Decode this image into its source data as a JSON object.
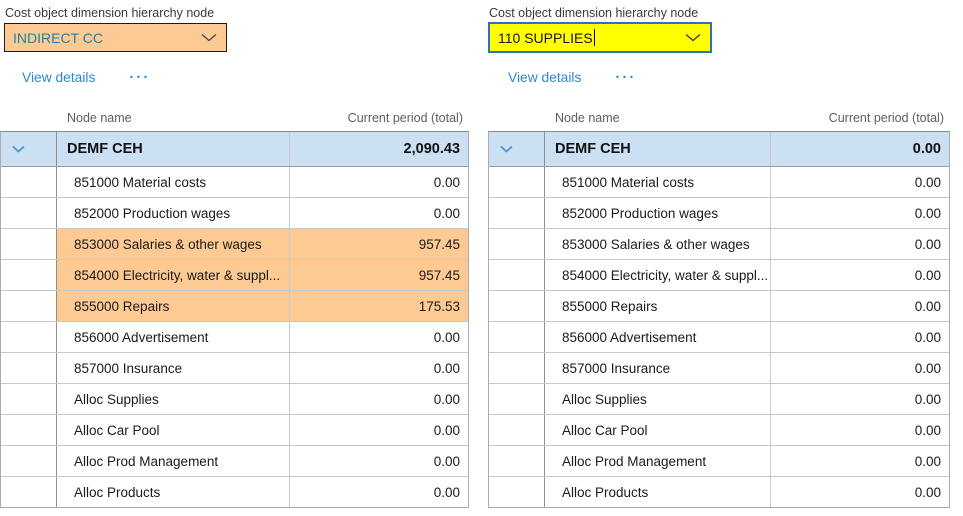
{
  "colors": {
    "highlight_orange": "#FDCA94",
    "edit_yellow": "#FFFF00",
    "selected_row_blue": "#CBE0F3",
    "link_blue": "#2C88D8",
    "combobox_text_teal": "#1E7FA8",
    "focus_border_blue": "#2F6FBF",
    "row_chevron_blue": "#4A90D2"
  },
  "panels": [
    {
      "field_label": "Cost object dimension hierarchy node",
      "combobox_value": "INDIRECT CC",
      "view_details_label": "View details",
      "more_options_glyph": "···",
      "table": {
        "columns": [
          "Node name",
          "Current period (total)"
        ],
        "rows": [
          {
            "name": "DEMF CEH",
            "value": "2,090.43",
            "selected": true
          },
          {
            "name": "851000 Material costs",
            "value": "0.00"
          },
          {
            "name": "852000 Production wages",
            "value": "0.00"
          },
          {
            "name": "853000 Salaries & other wages",
            "value": "957.45",
            "highlighted": true
          },
          {
            "name": "854000 Electricity, water & suppl...",
            "value": "957.45",
            "highlighted": true
          },
          {
            "name": "855000 Repairs",
            "value": "175.53",
            "highlighted": true
          },
          {
            "name": "856000 Advertisement",
            "value": "0.00"
          },
          {
            "name": "857000 Insurance",
            "value": "0.00"
          },
          {
            "name": "Alloc Supplies",
            "value": "0.00"
          },
          {
            "name": "Alloc Car Pool",
            "value": "0.00"
          },
          {
            "name": "Alloc Prod Management",
            "value": "0.00"
          },
          {
            "name": "Alloc Products",
            "value": "0.00"
          }
        ]
      }
    },
    {
      "field_label": "Cost object dimension hierarchy node",
      "combobox_value": "110 SUPPLIES",
      "view_details_label": "View details",
      "more_options_glyph": "···",
      "table": {
        "columns": [
          "Node name",
          "Current period (total)"
        ],
        "rows": [
          {
            "name": "DEMF CEH",
            "value": "0.00",
            "selected": true
          },
          {
            "name": "851000 Material costs",
            "value": "0.00"
          },
          {
            "name": "852000 Production wages",
            "value": "0.00"
          },
          {
            "name": "853000 Salaries & other wages",
            "value": "0.00"
          },
          {
            "name": "854000 Electricity, water & suppl...",
            "value": "0.00"
          },
          {
            "name": "855000 Repairs",
            "value": "0.00"
          },
          {
            "name": "856000 Advertisement",
            "value": "0.00"
          },
          {
            "name": "857000 Insurance",
            "value": "0.00"
          },
          {
            "name": "Alloc Supplies",
            "value": "0.00"
          },
          {
            "name": "Alloc Car Pool",
            "value": "0.00"
          },
          {
            "name": "Alloc Prod Management",
            "value": "0.00"
          },
          {
            "name": "Alloc Products",
            "value": "0.00"
          }
        ]
      }
    }
  ]
}
